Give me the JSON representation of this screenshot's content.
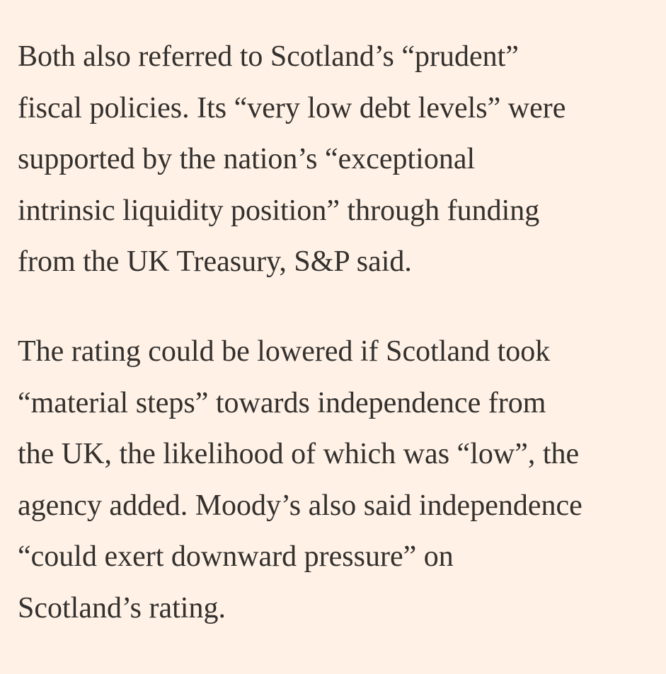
{
  "paragraphs": [
    {
      "lines": [
        "Both also referred to Scotland’s “prudent”",
        "fiscal policies. Its “very low debt levels” were",
        "supported by the nation’s “exceptional",
        "intrinsic liquidity position” through funding",
        "from the UK Treasury, S&P said."
      ]
    },
    {
      "lines": [
        "The rating could be lowered if Scotland took",
        "“material steps” towards independence from",
        "the UK, the likelihood of which was “low”, the",
        "agency added. Moody’s also said independence",
        "“could exert downward pressure” on",
        "Scotland’s rating."
      ]
    }
  ]
}
